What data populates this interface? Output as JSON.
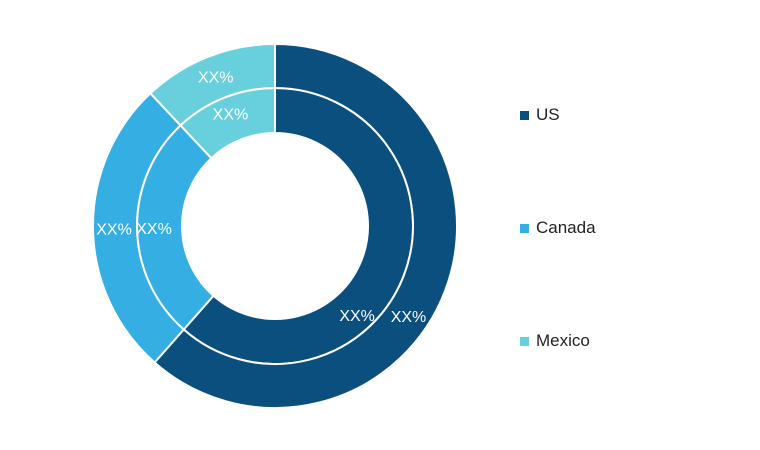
{
  "chart_data": {
    "type": "pie",
    "subtype": "nested-donut",
    "categories": [
      "US",
      "Canada",
      "Mexico"
    ],
    "colors": [
      "#0b4f7f",
      "#35aee3",
      "#68d0dc"
    ],
    "series": [
      {
        "values": [
          61.5,
          26.5,
          12
        ],
        "labels": [
          "XX%",
          "XX%",
          "XX%"
        ]
      },
      {
        "values": [
          61.5,
          26.5,
          12
        ],
        "labels": [
          "XX%",
          "XX%",
          "XX%"
        ]
      }
    ],
    "legend_position": "right"
  },
  "legend": {
    "items": [
      {
        "label": "US",
        "color": "#0b4f7f"
      },
      {
        "label": "Canada",
        "color": "#35aee3"
      },
      {
        "label": "Mexico",
        "color": "#68d0dc"
      }
    ]
  }
}
